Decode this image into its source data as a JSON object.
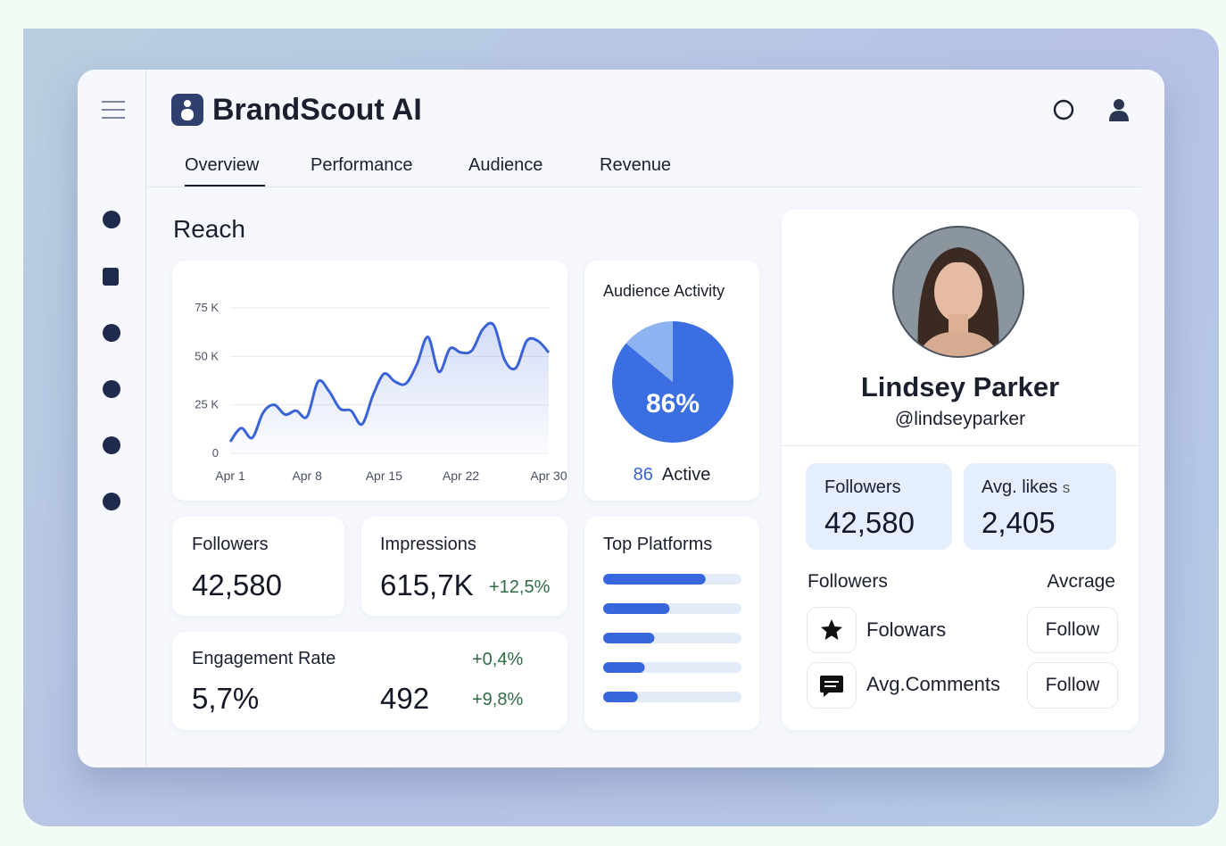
{
  "header": {
    "title": "BrandScout AI"
  },
  "tabs": [
    "Overview",
    "Performance",
    "Audience",
    "Revenue"
  ],
  "section_title": "Reach",
  "reach_chart": {
    "type": "line",
    "x": [
      1,
      2,
      3,
      4,
      5,
      6,
      7,
      8,
      9,
      10,
      11,
      12,
      13,
      14,
      15,
      16,
      17,
      18,
      19,
      20,
      21,
      22,
      23,
      24,
      25,
      26,
      27,
      28,
      29,
      30
    ],
    "values": [
      6000,
      13000,
      8000,
      21000,
      25000,
      20000,
      22000,
      19000,
      37000,
      32000,
      23000,
      22000,
      15000,
      30000,
      41000,
      37000,
      36000,
      46000,
      60000,
      42000,
      54000,
      52000,
      53000,
      64000,
      66000,
      48000,
      44000,
      58000,
      58000,
      52000
    ],
    "color": "#3a63d8",
    "xlim": [
      1,
      30
    ],
    "xticks": [
      {
        "value": 1,
        "label": "Apr 1"
      },
      {
        "value": 8,
        "label": "Apr 8"
      },
      {
        "value": 15,
        "label": "Apr 15"
      },
      {
        "value": 22,
        "label": "Apr 22"
      },
      {
        "value": 30,
        "label": "Apr 30"
      }
    ],
    "ylim": [
      0,
      75000
    ],
    "yticks": [
      0,
      {
        "value": 25000,
        "label": "25 K"
      },
      {
        "value": 50000,
        "label": "50 K"
      },
      {
        "value": 75000,
        "label": "75 K"
      }
    ],
    "grid": true
  },
  "audience_chart": {
    "type": "pie",
    "title": "Audience Activity",
    "values": [
      86,
      14
    ],
    "value_labels": [
      "86%",
      null
    ],
    "colors": [
      "#3b6ee0",
      "#8db4f0"
    ],
    "active_count": 86,
    "active_label": "Active"
  },
  "platforms_chart": {
    "type": "hbar",
    "title": "Top Platforms",
    "categories": [
      null,
      null,
      null,
      null,
      null
    ],
    "values": [
      74,
      48,
      37,
      30,
      25
    ],
    "xlim": [
      0,
      100
    ],
    "color": "#3866dc",
    "track_color": "#e4ebf8"
  },
  "stats": {
    "followers": {
      "label": "Followers",
      "value": "42,580"
    },
    "impressions": {
      "label": "Impressions",
      "value": "615,7K",
      "change": "+12,5%"
    },
    "engagement": {
      "label": "Engagement Rate",
      "value": "5,7%",
      "count": "492",
      "change_1": "+0,4%",
      "change_2": "+9,8%"
    }
  },
  "profile": {
    "name": "Lindsey Parker",
    "handle": "@lindseyparker",
    "cards": [
      {
        "label": "Followers",
        "value": "42,580"
      },
      {
        "label": "Avg. likes",
        "suffix": "s",
        "value": "2,405"
      }
    ],
    "list_header": [
      "Followers",
      "Avcrage"
    ],
    "rows": [
      {
        "label": "Folowars",
        "button": "Follow"
      },
      {
        "label": "Avg.Comments",
        "button": "Follow"
      }
    ]
  }
}
